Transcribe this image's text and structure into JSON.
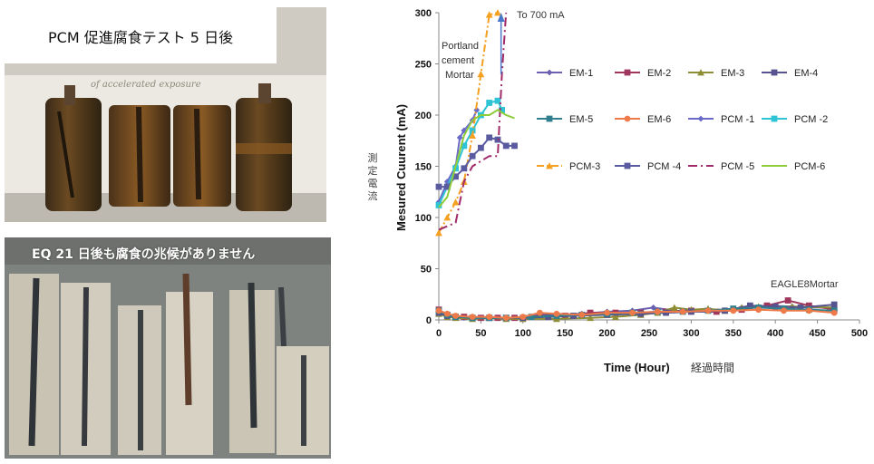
{
  "photo_top": {
    "caption": "PCM 促進腐食テスト 5 日後",
    "overlay_text": "of accelerated exposure"
  },
  "photo_bottom": {
    "caption": "EQ 21 日後も腐食の兆候がありません"
  },
  "chart_data": {
    "type": "line",
    "title": "",
    "xlabel": "Time (Hour)",
    "xlabel_ja": "経過時間",
    "ylabel": "Mesured Cuurent (mA)",
    "ylabel_ja": "測定電流",
    "xlim": [
      0,
      500
    ],
    "ylim": [
      0,
      300
    ],
    "xticks": [
      0,
      50,
      100,
      150,
      200,
      250,
      300,
      350,
      400,
      450,
      500
    ],
    "yticks": [
      0,
      50,
      100,
      150,
      200,
      250,
      300
    ],
    "grid": false,
    "legend": "top-right",
    "annotations": {
      "arrow_label": "To 700 mA",
      "portland_label": [
        "Portland",
        "cement",
        "Mortar"
      ],
      "eagle_label": "EAGLE8Mortar"
    },
    "series": [
      {
        "name": "EM-1",
        "color": "#6a5fb0",
        "marker": "diamond",
        "dash": "",
        "points": [
          [
            0,
            8
          ],
          [
            10,
            4
          ],
          [
            20,
            3
          ],
          [
            30,
            2
          ],
          [
            50,
            2
          ],
          [
            60,
            3
          ],
          [
            80,
            2
          ],
          [
            100,
            2
          ],
          [
            120,
            6
          ],
          [
            140,
            5
          ],
          [
            170,
            6
          ],
          [
            200,
            8
          ],
          [
            230,
            9
          ],
          [
            255,
            12
          ],
          [
            280,
            9
          ],
          [
            300,
            8
          ],
          [
            330,
            8
          ],
          [
            360,
            12
          ],
          [
            390,
            14
          ],
          [
            420,
            13
          ],
          [
            440,
            12
          ],
          [
            470,
            12
          ]
        ]
      },
      {
        "name": "EM-2",
        "color": "#a0365c",
        "marker": "square",
        "dash": "",
        "points": [
          [
            0,
            10
          ],
          [
            10,
            5
          ],
          [
            20,
            3
          ],
          [
            30,
            3
          ],
          [
            50,
            2
          ],
          [
            70,
            2
          ],
          [
            90,
            2
          ],
          [
            120,
            4
          ],
          [
            150,
            4
          ],
          [
            180,
            7
          ],
          [
            210,
            7
          ],
          [
            240,
            7
          ],
          [
            270,
            8
          ],
          [
            300,
            9
          ],
          [
            330,
            8
          ],
          [
            360,
            10
          ],
          [
            390,
            14
          ],
          [
            415,
            19
          ],
          [
            440,
            14
          ],
          [
            470,
            10
          ]
        ]
      },
      {
        "name": "EM-3",
        "color": "#8e8c34",
        "marker": "triangle",
        "dash": "",
        "points": [
          [
            0,
            6
          ],
          [
            10,
            3
          ],
          [
            20,
            2
          ],
          [
            40,
            1
          ],
          [
            60,
            2
          ],
          [
            80,
            1
          ],
          [
            100,
            1
          ],
          [
            140,
            1
          ],
          [
            180,
            2
          ],
          [
            210,
            3
          ],
          [
            240,
            5
          ],
          [
            260,
            7
          ],
          [
            280,
            12
          ],
          [
            300,
            10
          ],
          [
            320,
            11
          ],
          [
            340,
            9
          ],
          [
            360,
            12
          ],
          [
            380,
            13
          ],
          [
            420,
            13
          ],
          [
            470,
            12
          ]
        ]
      },
      {
        "name": "EM-4",
        "color": "#56538e",
        "marker": "square",
        "dash": "",
        "points": [
          [
            0,
            7
          ],
          [
            10,
            4
          ],
          [
            20,
            3
          ],
          [
            40,
            2
          ],
          [
            60,
            2
          ],
          [
            80,
            2
          ],
          [
            100,
            2
          ],
          [
            130,
            3
          ],
          [
            160,
            4
          ],
          [
            200,
            5
          ],
          [
            240,
            6
          ],
          [
            270,
            7
          ],
          [
            300,
            8
          ],
          [
            340,
            9
          ],
          [
            370,
            14
          ],
          [
            400,
            13
          ],
          [
            430,
            12
          ],
          [
            470,
            15
          ]
        ]
      },
      {
        "name": "EM-5",
        "color": "#2f7f8f",
        "marker": "square",
        "dash": "",
        "points": [
          [
            0,
            9
          ],
          [
            10,
            5
          ],
          [
            20,
            3
          ],
          [
            40,
            2
          ],
          [
            60,
            2
          ],
          [
            80,
            2
          ],
          [
            110,
            3
          ],
          [
            140,
            4
          ],
          [
            170,
            5
          ],
          [
            200,
            6
          ],
          [
            230,
            7
          ],
          [
            260,
            8
          ],
          [
            290,
            8
          ],
          [
            320,
            9
          ],
          [
            350,
            11
          ],
          [
            380,
            12
          ],
          [
            410,
            11
          ],
          [
            440,
            10
          ],
          [
            470,
            9
          ]
        ]
      },
      {
        "name": "EM-6",
        "color": "#ee7a4a",
        "marker": "circle",
        "dash": "",
        "points": [
          [
            0,
            9
          ],
          [
            10,
            6
          ],
          [
            20,
            4
          ],
          [
            40,
            3
          ],
          [
            60,
            3
          ],
          [
            80,
            2
          ],
          [
            100,
            3
          ],
          [
            120,
            7
          ],
          [
            140,
            6
          ],
          [
            170,
            5
          ],
          [
            200,
            7
          ],
          [
            230,
            7
          ],
          [
            260,
            8
          ],
          [
            290,
            8
          ],
          [
            320,
            9
          ],
          [
            350,
            9
          ],
          [
            380,
            10
          ],
          [
            410,
            9
          ],
          [
            440,
            9
          ],
          [
            470,
            7
          ]
        ]
      },
      {
        "name": "PCM -1",
        "color": "#6a6ac8",
        "marker": "diamond",
        "dash": "",
        "points": [
          [
            0,
            115
          ],
          [
            10,
            135
          ],
          [
            20,
            150
          ],
          [
            25,
            178
          ],
          [
            30,
            185
          ],
          [
            40,
            195
          ],
          [
            45,
            205
          ]
        ]
      },
      {
        "name": "PCM -2",
        "color": "#2ec4d6",
        "marker": "square",
        "dash": "",
        "points": [
          [
            0,
            112
          ],
          [
            10,
            130
          ],
          [
            20,
            148
          ],
          [
            30,
            170
          ],
          [
            40,
            185
          ],
          [
            50,
            200
          ],
          [
            60,
            212
          ],
          [
            70,
            214
          ],
          [
            75,
            205
          ]
        ]
      },
      {
        "name": "PCM-3",
        "color": "#f5a020",
        "marker": "triangle",
        "dash": "8,3,2,3",
        "points": [
          [
            0,
            85
          ],
          [
            10,
            100
          ],
          [
            20,
            115
          ],
          [
            30,
            135
          ],
          [
            40,
            180
          ],
          [
            50,
            240
          ],
          [
            60,
            298
          ],
          [
            70,
            300
          ]
        ]
      },
      {
        "name": "PCM -4",
        "color": "#5a5aa0",
        "marker": "square",
        "dash": "",
        "points": [
          [
            0,
            130
          ],
          [
            10,
            130
          ],
          [
            20,
            140
          ],
          [
            30,
            148
          ],
          [
            40,
            160
          ],
          [
            50,
            168
          ],
          [
            60,
            178
          ],
          [
            70,
            176
          ],
          [
            80,
            170
          ],
          [
            90,
            170
          ]
        ]
      },
      {
        "name": "PCM -5",
        "color": "#a02a6a",
        "marker": "none",
        "dash": "10,4,2,4",
        "points": [
          [
            0,
            88
          ],
          [
            20,
            95
          ],
          [
            30,
            135
          ],
          [
            40,
            150
          ],
          [
            50,
            155
          ],
          [
            60,
            160
          ],
          [
            70,
            160
          ],
          [
            75,
            240
          ],
          [
            80,
            300
          ]
        ]
      },
      {
        "name": "PCM-6",
        "color": "#8ecc3a",
        "marker": "none",
        "dash": "",
        "points": [
          [
            0,
            110
          ],
          [
            10,
            120
          ],
          [
            20,
            150
          ],
          [
            30,
            180
          ],
          [
            40,
            195
          ],
          [
            50,
            200
          ],
          [
            60,
            200
          ],
          [
            70,
            205
          ],
          [
            80,
            200
          ],
          [
            90,
            197
          ]
        ]
      }
    ]
  }
}
